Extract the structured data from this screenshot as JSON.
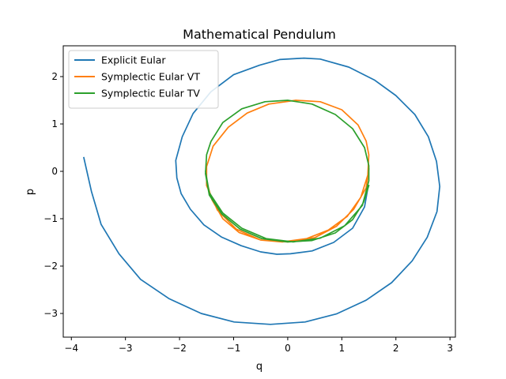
{
  "chart_data": {
    "type": "line",
    "title": "Mathematical Pendulum",
    "xlabel": "q",
    "ylabel": "p",
    "xlim": [
      -4.15,
      3.1
    ],
    "ylim": [
      -3.5,
      2.65
    ],
    "xticks": [
      {
        "v": -4,
        "label": "−4"
      },
      {
        "v": -3,
        "label": "−3"
      },
      {
        "v": -2,
        "label": "−2"
      },
      {
        "v": -1,
        "label": "−1"
      },
      {
        "v": 0,
        "label": "0"
      },
      {
        "v": 1,
        "label": "1"
      },
      {
        "v": 2,
        "label": "2"
      },
      {
        "v": 3,
        "label": "3"
      }
    ],
    "yticks": [
      {
        "v": -3,
        "label": "−3"
      },
      {
        "v": -2,
        "label": "−2"
      },
      {
        "v": -1,
        "label": "−1"
      },
      {
        "v": 0,
        "label": "0"
      },
      {
        "v": 1,
        "label": "1"
      },
      {
        "v": 2,
        "label": "2"
      }
    ],
    "grid": false,
    "legend_position": "top-left",
    "series": [
      {
        "name": "Explicit Eular",
        "color": "#1f77b4",
        "points": [
          [
            -3.77,
            0.29
          ],
          [
            -3.63,
            -0.42
          ],
          [
            -3.45,
            -1.12
          ],
          [
            -3.12,
            -1.74
          ],
          [
            -2.72,
            -2.28
          ],
          [
            -2.19,
            -2.69
          ],
          [
            -1.6,
            -3.0
          ],
          [
            -0.99,
            -3.18
          ],
          [
            -0.32,
            -3.23
          ],
          [
            0.32,
            -3.18
          ],
          [
            0.9,
            -3.01
          ],
          [
            1.45,
            -2.72
          ],
          [
            1.92,
            -2.35
          ],
          [
            2.3,
            -1.89
          ],
          [
            2.58,
            -1.39
          ],
          [
            2.76,
            -0.85
          ],
          [
            2.81,
            -0.32
          ],
          [
            2.75,
            0.21
          ],
          [
            2.6,
            0.73
          ],
          [
            2.35,
            1.2
          ],
          [
            2.0,
            1.6
          ],
          [
            1.6,
            1.93
          ],
          [
            1.13,
            2.2
          ],
          [
            0.6,
            2.37
          ],
          [
            0.3,
            2.39
          ],
          [
            -0.15,
            2.36
          ],
          [
            -0.52,
            2.24
          ],
          [
            -1.0,
            2.04
          ],
          [
            -1.42,
            1.68
          ],
          [
            -1.75,
            1.22
          ],
          [
            -1.95,
            0.73
          ],
          [
            -2.07,
            0.23
          ],
          [
            -2.05,
            -0.14
          ],
          [
            -1.97,
            -0.47
          ],
          [
            -1.8,
            -0.8
          ],
          [
            -1.55,
            -1.13
          ],
          [
            -1.22,
            -1.39
          ],
          [
            -0.86,
            -1.57
          ],
          [
            -0.5,
            -1.7
          ],
          [
            -0.2,
            -1.75
          ],
          [
            0.05,
            -1.74
          ],
          [
            0.45,
            -1.68
          ],
          [
            0.85,
            -1.5
          ],
          [
            1.2,
            -1.2
          ],
          [
            1.42,
            -0.75
          ],
          [
            1.48,
            -0.36
          ]
        ]
      },
      {
        "name": "Symplectic Eular VT",
        "color": "#ff7f0e",
        "points": [
          [
            -1.48,
            -0.3
          ],
          [
            -1.4,
            -0.6
          ],
          [
            -1.2,
            -1.0
          ],
          [
            -0.9,
            -1.29
          ],
          [
            -0.5,
            -1.45
          ],
          [
            -0.1,
            -1.49
          ],
          [
            0.35,
            -1.42
          ],
          [
            0.75,
            -1.24
          ],
          [
            1.1,
            -0.95
          ],
          [
            1.35,
            -0.55
          ],
          [
            1.48,
            -0.08
          ],
          [
            1.5,
            0.35
          ],
          [
            1.45,
            0.64
          ],
          [
            1.3,
            0.98
          ],
          [
            1.0,
            1.3
          ],
          [
            0.6,
            1.47
          ],
          [
            0.15,
            1.5
          ],
          [
            -0.35,
            1.42
          ],
          [
            -0.75,
            1.23
          ],
          [
            -1.1,
            0.93
          ],
          [
            -1.38,
            0.53
          ],
          [
            -1.5,
            0.1
          ],
          [
            -1.5,
            -0.3
          ],
          [
            -1.3,
            -0.82
          ],
          [
            -0.95,
            -1.22
          ],
          [
            -0.5,
            -1.45
          ],
          [
            0.0,
            -1.49
          ],
          [
            0.5,
            -1.4
          ],
          [
            0.9,
            -1.16
          ],
          [
            1.22,
            -0.8
          ],
          [
            1.45,
            -0.35
          ],
          [
            1.5,
            0.05
          ]
        ]
      },
      {
        "name": "Symplectic Eular TV",
        "color": "#2ca02c",
        "points": [
          [
            1.5,
            -0.3
          ],
          [
            1.4,
            -0.66
          ],
          [
            1.2,
            -1.02
          ],
          [
            0.88,
            -1.3
          ],
          [
            0.45,
            -1.46
          ],
          [
            0.0,
            -1.49
          ],
          [
            -0.48,
            -1.42
          ],
          [
            -0.88,
            -1.22
          ],
          [
            -1.22,
            -0.9
          ],
          [
            -1.45,
            -0.5
          ],
          [
            -1.52,
            -0.05
          ],
          [
            -1.5,
            0.35
          ],
          [
            -1.42,
            0.63
          ],
          [
            -1.2,
            1.03
          ],
          [
            -0.85,
            1.32
          ],
          [
            -0.42,
            1.47
          ],
          [
            0.0,
            1.5
          ],
          [
            0.45,
            1.42
          ],
          [
            0.88,
            1.2
          ],
          [
            1.2,
            0.9
          ],
          [
            1.42,
            0.5
          ],
          [
            1.5,
            0.12
          ],
          [
            1.5,
            -0.2
          ],
          [
            1.38,
            -0.72
          ],
          [
            1.05,
            -1.15
          ],
          [
            0.6,
            -1.41
          ],
          [
            0.1,
            -1.49
          ],
          [
            -0.4,
            -1.42
          ],
          [
            -0.85,
            -1.2
          ],
          [
            -1.2,
            -0.88
          ],
          [
            -1.45,
            -0.45
          ],
          [
            -1.52,
            0.0
          ]
        ]
      }
    ]
  }
}
